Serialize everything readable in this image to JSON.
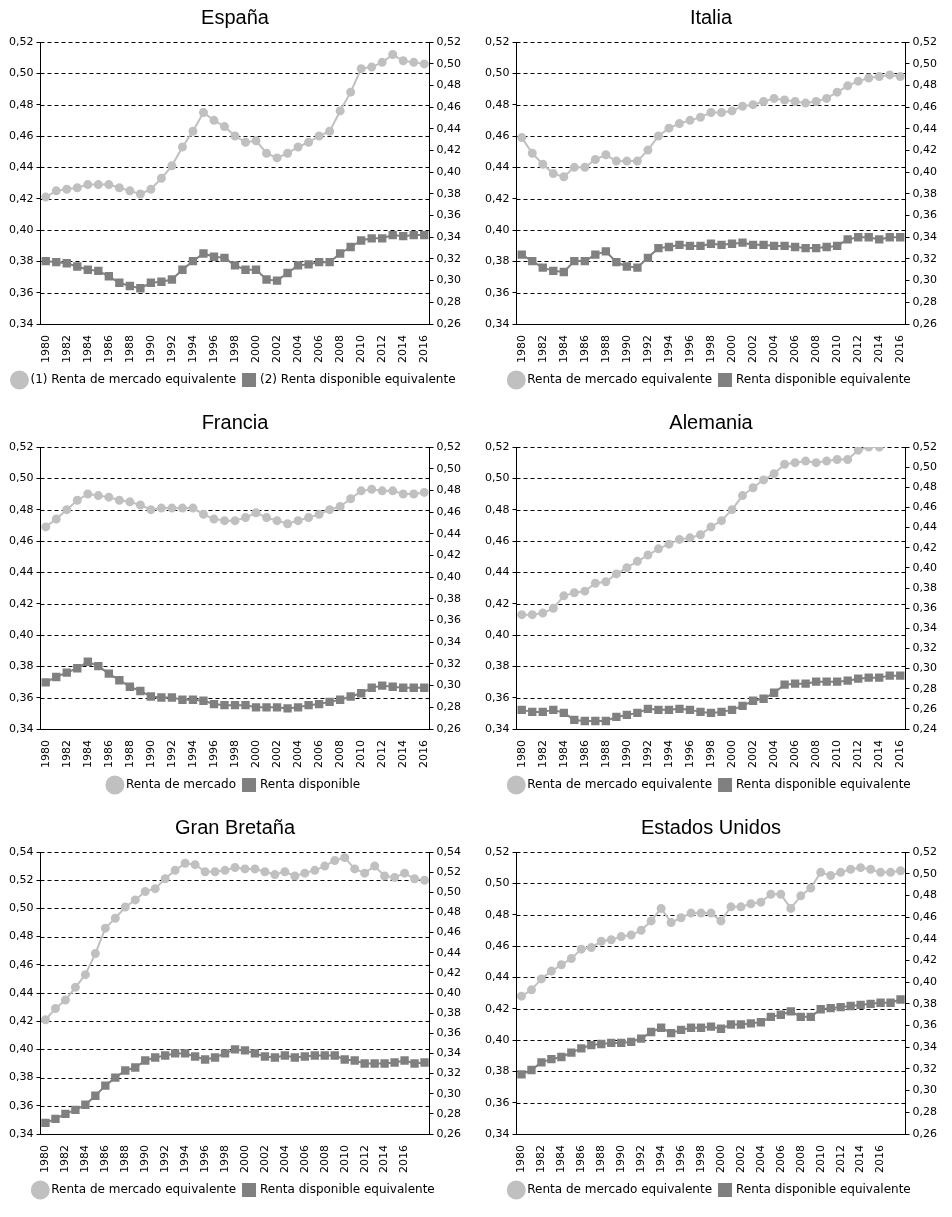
{
  "chart_data": [
    {
      "type": "line",
      "title": "España",
      "categories": [
        "1980",
        null,
        "1982",
        null,
        "1984",
        null,
        "1986",
        null,
        "1988",
        null,
        "1990",
        null,
        "1992",
        null,
        "1994",
        null,
        "1996",
        null,
        "1998",
        null,
        "2000",
        null,
        "2002",
        null,
        "2004",
        null,
        "2006",
        null,
        "2008",
        null,
        "2010",
        null,
        "2012",
        null,
        "2014",
        null,
        "2016"
      ],
      "series": [
        {
          "name": "(1) Renta de mercado equivalente",
          "color": "#c0c0c0",
          "marker": "circle",
          "values": [
            0.421,
            0.425,
            0.426,
            0.427,
            0.429,
            0.429,
            0.429,
            0.427,
            0.425,
            0.423,
            0.426,
            0.433,
            0.441,
            0.453,
            0.463,
            0.475,
            0.47,
            0.466,
            0.46,
            0.456,
            0.457,
            0.449,
            0.446,
            0.449,
            0.453,
            0.456,
            0.46,
            0.463,
            0.476,
            0.488,
            0.503,
            0.504,
            0.507,
            0.512,
            0.508,
            0.507,
            0.506
          ]
        },
        {
          "name": "(2) Renta disponible equivalente",
          "color": "#808080",
          "marker": "square",
          "axis": "y2",
          "values": [
            0.318,
            0.317,
            0.316,
            0.313,
            0.31,
            0.309,
            0.304,
            0.298,
            0.295,
            0.293,
            0.298,
            0.299,
            0.301,
            0.31,
            0.318,
            0.325,
            0.322,
            0.321,
            0.314,
            0.31,
            0.31,
            0.301,
            0.3,
            0.307,
            0.314,
            0.315,
            0.317,
            0.317,
            0.325,
            0.331,
            0.337,
            0.339,
            0.339,
            0.342,
            0.341,
            0.342,
            0.342
          ]
        }
      ],
      "ylim": [
        0.34,
        0.52
      ],
      "yticks": [
        {
          "value": 0.34,
          "label": "0,34"
        },
        {
          "value": 0.36,
          "label": "0,36"
        },
        {
          "value": 0.38,
          "label": "0,38"
        },
        {
          "value": 0.4,
          "label": "0,40"
        },
        {
          "value": 0.42,
          "label": "0,42"
        },
        {
          "value": 0.44,
          "label": "0,44"
        },
        {
          "value": 0.46,
          "label": "0,46"
        },
        {
          "value": 0.48,
          "label": "0,48"
        },
        {
          "value": 0.5,
          "label": "0,50"
        },
        {
          "value": 0.52,
          "label": "0,52"
        }
      ],
      "y2lim": [
        0.26,
        0.52
      ],
      "y2ticks": [
        {
          "value": 0.26,
          "label": "0,26"
        },
        {
          "value": 0.28,
          "label": "0,28"
        },
        {
          "value": 0.3,
          "label": "0,30"
        },
        {
          "value": 0.32,
          "label": "0,32"
        },
        {
          "value": 0.34,
          "label": "0,34"
        },
        {
          "value": 0.36,
          "label": "0,36"
        },
        {
          "value": 0.38,
          "label": "0,38"
        },
        {
          "value": 0.4,
          "label": "0,40"
        },
        {
          "value": 0.42,
          "label": "0,42"
        },
        {
          "value": 0.44,
          "label": "0,44"
        },
        {
          "value": 0.46,
          "label": "0,46"
        },
        {
          "value": 0.48,
          "label": "0,48"
        },
        {
          "value": 0.5,
          "label": "0,50"
        },
        {
          "value": 0.52,
          "label": "0,52"
        }
      ],
      "grid": "y",
      "legend": "bottom",
      "line_style": "solid"
    },
    {
      "type": "line",
      "title": "Italia",
      "categories": [
        "1980",
        null,
        "1982",
        null,
        "1984",
        null,
        "1986",
        null,
        "1988",
        null,
        "1990",
        null,
        "1992",
        null,
        "1994",
        null,
        "1996",
        null,
        "1998",
        null,
        "2000",
        null,
        "2002",
        null,
        "2004",
        null,
        "2006",
        null,
        "2008",
        null,
        "2010",
        null,
        "2012",
        null,
        "2014",
        null,
        "2016"
      ],
      "series": [
        {
          "name": "Renta de mercado equivalente",
          "color": "#c0c0c0",
          "marker": "circle",
          "values": [
            0.459,
            0.449,
            0.442,
            0.436,
            0.434,
            0.44,
            0.44,
            0.445,
            0.448,
            0.444,
            0.444,
            0.444,
            0.451,
            0.46,
            0.465,
            0.468,
            0.47,
            0.472,
            0.475,
            0.475,
            0.476,
            0.479,
            0.48,
            0.482,
            0.484,
            0.483,
            0.482,
            0.481,
            0.482,
            0.484,
            0.488,
            0.492,
            0.495,
            0.497,
            0.498,
            0.499,
            0.498
          ]
        },
        {
          "name": "Renta disponible equivalente",
          "color": "#808080",
          "marker": "square",
          "axis": "y2",
          "values": [
            0.324,
            0.318,
            0.312,
            0.309,
            0.308,
            0.318,
            0.318,
            0.324,
            0.327,
            0.317,
            0.313,
            0.312,
            0.321,
            0.33,
            0.331,
            0.333,
            0.332,
            0.332,
            0.334,
            0.333,
            0.334,
            0.335,
            0.333,
            0.333,
            0.332,
            0.332,
            0.331,
            0.33,
            0.33,
            0.331,
            0.332,
            0.338,
            0.34,
            0.34,
            0.338,
            0.34,
            0.34
          ]
        }
      ],
      "ylim": [
        0.34,
        0.52
      ],
      "yticks": [
        {
          "value": 0.34,
          "label": "0,34"
        },
        {
          "value": 0.36,
          "label": "0,36"
        },
        {
          "value": 0.38,
          "label": "0,38"
        },
        {
          "value": 0.4,
          "label": "0,40"
        },
        {
          "value": 0.42,
          "label": "0,42"
        },
        {
          "value": 0.44,
          "label": "0,44"
        },
        {
          "value": 0.46,
          "label": "0,46"
        },
        {
          "value": 0.48,
          "label": "0,48"
        },
        {
          "value": 0.5,
          "label": "0,50"
        },
        {
          "value": 0.52,
          "label": "0,52"
        }
      ],
      "y2lim": [
        0.26,
        0.52
      ],
      "y2ticks": [
        {
          "value": 0.26,
          "label": "0,26"
        },
        {
          "value": 0.28,
          "label": "0,28"
        },
        {
          "value": 0.3,
          "label": "0,30"
        },
        {
          "value": 0.32,
          "label": "0,32"
        },
        {
          "value": 0.34,
          "label": "0,34"
        },
        {
          "value": 0.36,
          "label": "0,36"
        },
        {
          "value": 0.38,
          "label": "0,38"
        },
        {
          "value": 0.4,
          "label": "0,40"
        },
        {
          "value": 0.42,
          "label": "0,42"
        },
        {
          "value": 0.44,
          "label": "0,44"
        },
        {
          "value": 0.46,
          "label": "0,46"
        },
        {
          "value": 0.48,
          "label": "0,48"
        },
        {
          "value": 0.5,
          "label": "0,50"
        },
        {
          "value": 0.52,
          "label": "0,52"
        }
      ],
      "grid": "y",
      "legend": "bottom",
      "line_style": "solid"
    },
    {
      "type": "line",
      "title": "Francia",
      "categories": [
        "1980",
        null,
        "1982",
        null,
        "1984",
        null,
        "1986",
        null,
        "1988",
        null,
        "1990",
        null,
        "1992",
        null,
        "1994",
        null,
        "1996",
        null,
        "1998",
        null,
        "2000",
        null,
        "2002",
        null,
        "2004",
        null,
        "2006",
        null,
        "2008",
        null,
        "2010",
        null,
        "2012",
        null,
        "2014",
        null,
        "2016"
      ],
      "series": [
        {
          "name": "Renta de mercado",
          "color": "#c0c0c0",
          "marker": "circle",
          "values": [
            0.469,
            0.474,
            0.48,
            0.486,
            0.49,
            0.489,
            0.488,
            0.486,
            0.485,
            0.483,
            0.48,
            0.481,
            0.481,
            0.481,
            0.481,
            0.477,
            0.474,
            0.473,
            0.473,
            0.475,
            0.478,
            0.475,
            0.473,
            0.471,
            0.473,
            0.475,
            0.477,
            0.48,
            0.482,
            0.487,
            0.492,
            0.493,
            0.492,
            0.492,
            0.49,
            0.49,
            0.491
          ]
        },
        {
          "name": "Renta disponible",
          "color": "#808080",
          "marker": "square",
          "axis": "y2",
          "values": [
            0.303,
            0.308,
            0.312,
            0.316,
            0.322,
            0.318,
            0.311,
            0.305,
            0.299,
            0.295,
            0.29,
            0.289,
            0.289,
            0.287,
            0.287,
            0.286,
            0.283,
            0.282,
            0.282,
            0.282,
            0.28,
            0.28,
            0.28,
            0.279,
            0.28,
            0.282,
            0.283,
            0.285,
            0.287,
            0.29,
            0.293,
            0.298,
            0.3,
            0.299,
            0.298,
            0.298,
            0.298
          ]
        }
      ],
      "ylim": [
        0.34,
        0.52
      ],
      "yticks": [
        {
          "value": 0.34,
          "label": "0,34"
        },
        {
          "value": 0.36,
          "label": "0,36"
        },
        {
          "value": 0.38,
          "label": "0,38"
        },
        {
          "value": 0.4,
          "label": "0,40"
        },
        {
          "value": 0.42,
          "label": "0,42"
        },
        {
          "value": 0.44,
          "label": "0,44"
        },
        {
          "value": 0.46,
          "label": "0,46"
        },
        {
          "value": 0.48,
          "label": "0,48"
        },
        {
          "value": 0.5,
          "label": "0,50"
        },
        {
          "value": 0.52,
          "label": "0,52"
        }
      ],
      "y2lim": [
        0.26,
        0.52
      ],
      "y2ticks": [
        {
          "value": 0.26,
          "label": "0,26"
        },
        {
          "value": 0.28,
          "label": "0,28"
        },
        {
          "value": 0.3,
          "label": "0,30"
        },
        {
          "value": 0.32,
          "label": "0,32"
        },
        {
          "value": 0.34,
          "label": "0,34"
        },
        {
          "value": 0.36,
          "label": "0,36"
        },
        {
          "value": 0.38,
          "label": "0,38"
        },
        {
          "value": 0.4,
          "label": "0,40"
        },
        {
          "value": 0.42,
          "label": "0,42"
        },
        {
          "value": 0.44,
          "label": "0,44"
        },
        {
          "value": 0.46,
          "label": "0,46"
        },
        {
          "value": 0.48,
          "label": "0,48"
        },
        {
          "value": 0.5,
          "label": "0,50"
        },
        {
          "value": 0.52,
          "label": "0,52"
        }
      ],
      "grid": "y",
      "legend": "bottom",
      "line_style": "solid"
    },
    {
      "type": "line",
      "title": "Alemania",
      "categories": [
        "1980",
        null,
        "1982",
        null,
        "1984",
        null,
        "1986",
        null,
        "1988",
        null,
        "1990",
        null,
        "1992",
        null,
        "1994",
        null,
        "1996",
        null,
        "1998",
        null,
        "2000",
        null,
        "2002",
        null,
        "2004",
        null,
        "2006",
        null,
        "2008",
        null,
        "2010",
        null,
        "2012",
        null,
        "2014",
        null,
        "2016"
      ],
      "series": [
        {
          "name": "Renta de mercado equivalente",
          "color": "#c0c0c0",
          "marker": "circle",
          "values": [
            0.413,
            0.413,
            0.414,
            0.417,
            0.425,
            0.427,
            0.428,
            0.433,
            0.434,
            0.439,
            0.443,
            0.447,
            0.451,
            0.455,
            0.458,
            0.461,
            0.462,
            0.464,
            0.469,
            0.473,
            0.48,
            0.489,
            0.494,
            0.499,
            0.503,
            0.509,
            0.51,
            0.511,
            0.51,
            0.511,
            0.512,
            0.512,
            0.518,
            0.52,
            0.52,
            null,
            null
          ]
        },
        {
          "name": "Renta disponible equivalente",
          "color": "#808080",
          "marker": "square",
          "axis": "y2",
          "values": [
            0.259,
            0.257,
            0.257,
            0.259,
            0.256,
            0.249,
            0.248,
            0.248,
            0.248,
            0.252,
            0.254,
            0.256,
            0.26,
            0.259,
            0.259,
            0.26,
            0.259,
            0.257,
            0.256,
            0.257,
            0.259,
            0.263,
            0.268,
            0.27,
            0.276,
            0.284,
            0.285,
            0.285,
            0.287,
            0.287,
            0.287,
            0.288,
            0.29,
            0.291,
            0.291,
            0.293,
            0.293
          ]
        }
      ],
      "ylim": [
        0.34,
        0.52
      ],
      "yticks": [
        {
          "value": 0.34,
          "label": "0,34"
        },
        {
          "value": 0.36,
          "label": "0,36"
        },
        {
          "value": 0.38,
          "label": "0,38"
        },
        {
          "value": 0.4,
          "label": "0,40"
        },
        {
          "value": 0.42,
          "label": "0,42"
        },
        {
          "value": 0.44,
          "label": "0,44"
        },
        {
          "value": 0.46,
          "label": "0,46"
        },
        {
          "value": 0.48,
          "label": "0,48"
        },
        {
          "value": 0.5,
          "label": "0,50"
        },
        {
          "value": 0.52,
          "label": "0,52"
        }
      ],
      "y2lim": [
        0.24,
        0.52
      ],
      "y2ticks": [
        {
          "value": 0.24,
          "label": "0,24"
        },
        {
          "value": 0.26,
          "label": "0,26"
        },
        {
          "value": 0.28,
          "label": "0,28"
        },
        {
          "value": 0.3,
          "label": "0,30"
        },
        {
          "value": 0.32,
          "label": "0,32"
        },
        {
          "value": 0.34,
          "label": "0,34"
        },
        {
          "value": 0.36,
          "label": "0,36"
        },
        {
          "value": 0.38,
          "label": "0,38"
        },
        {
          "value": 0.4,
          "label": "0,40"
        },
        {
          "value": 0.42,
          "label": "0,42"
        },
        {
          "value": 0.44,
          "label": "0,44"
        },
        {
          "value": 0.46,
          "label": "0,46"
        },
        {
          "value": 0.48,
          "label": "0,48"
        },
        {
          "value": 0.5,
          "label": "0,50"
        },
        {
          "value": 0.52,
          "label": "0,52"
        }
      ],
      "grid": "y",
      "legend": "bottom",
      "line_style": "solid"
    },
    {
      "type": "line",
      "title": "Gran Bretaña",
      "categories": [
        "1980",
        null,
        "1982",
        null,
        "1984",
        null,
        "1986",
        null,
        "1988",
        null,
        "1990",
        null,
        "1992",
        null,
        "1994",
        null,
        "1996",
        null,
        "1998",
        null,
        "2000",
        null,
        "2002",
        null,
        "2004",
        null,
        "2006",
        null,
        "2008",
        null,
        "2010",
        null,
        "2012",
        null,
        "2014",
        null,
        "2016",
        null,
        null
      ],
      "series": [
        {
          "name": "Renta de mercado equivalente",
          "color": "#c0c0c0",
          "marker": "circle",
          "values": [
            0.421,
            0.429,
            0.435,
            0.444,
            0.453,
            0.468,
            0.486,
            0.493,
            0.501,
            0.506,
            0.512,
            0.514,
            0.521,
            0.527,
            0.532,
            0.531,
            0.526,
            0.526,
            0.527,
            0.529,
            0.528,
            0.528,
            0.526,
            0.524,
            0.526,
            0.523,
            0.525,
            0.527,
            0.53,
            0.534,
            0.536,
            0.528,
            0.525,
            0.53,
            0.523,
            0.522,
            0.525,
            0.521,
            0.52
          ]
        },
        {
          "name": "Renta disponible equivalente",
          "color": "#808080",
          "marker": "square",
          "axis": "y2",
          "values": [
            0.271,
            0.275,
            0.28,
            0.284,
            0.289,
            0.298,
            0.308,
            0.316,
            0.323,
            0.326,
            0.333,
            0.336,
            0.338,
            0.34,
            0.34,
            0.337,
            0.334,
            0.336,
            0.34,
            0.344,
            0.343,
            0.34,
            0.337,
            0.336,
            0.338,
            0.336,
            0.337,
            0.338,
            0.338,
            0.338,
            0.334,
            0.333,
            0.33,
            0.33,
            0.33,
            0.331,
            0.333,
            0.33,
            0.331
          ]
        }
      ],
      "ylim": [
        0.34,
        0.54
      ],
      "yticks": [
        {
          "value": 0.34,
          "label": "0,34"
        },
        {
          "value": 0.36,
          "label": "0,36"
        },
        {
          "value": 0.38,
          "label": "0,38"
        },
        {
          "value": 0.4,
          "label": "0,40"
        },
        {
          "value": 0.42,
          "label": "0,42"
        },
        {
          "value": 0.44,
          "label": "0,44"
        },
        {
          "value": 0.46,
          "label": "0,46"
        },
        {
          "value": 0.48,
          "label": "0,48"
        },
        {
          "value": 0.5,
          "label": "0,50"
        },
        {
          "value": 0.52,
          "label": "0,52"
        },
        {
          "value": 0.54,
          "label": "0,54"
        }
      ],
      "y2lim": [
        0.26,
        0.54
      ],
      "y2ticks": [
        {
          "value": 0.26,
          "label": "0,26"
        },
        {
          "value": 0.28,
          "label": "0,28"
        },
        {
          "value": 0.3,
          "label": "0,30"
        },
        {
          "value": 0.32,
          "label": "0,32"
        },
        {
          "value": 0.34,
          "label": "0,34"
        },
        {
          "value": 0.36,
          "label": "0,36"
        },
        {
          "value": 0.38,
          "label": "0,38"
        },
        {
          "value": 0.4,
          "label": "0,40"
        },
        {
          "value": 0.42,
          "label": "0,42"
        },
        {
          "value": 0.44,
          "label": "0,44"
        },
        {
          "value": 0.46,
          "label": "0,46"
        },
        {
          "value": 0.48,
          "label": "0,48"
        },
        {
          "value": 0.5,
          "label": "0,50"
        },
        {
          "value": 0.52,
          "label": "0,52"
        },
        {
          "value": 0.54,
          "label": "0,54"
        }
      ],
      "grid": "y",
      "legend": "bottom",
      "line_style": "solid"
    },
    {
      "type": "line",
      "title": "Estados Unidos",
      "categories": [
        "1980",
        null,
        "1982",
        null,
        "1984",
        null,
        "1986",
        null,
        "1988",
        null,
        "1990",
        null,
        "1992",
        null,
        "1994",
        null,
        "1996",
        null,
        "1998",
        null,
        "2000",
        null,
        "2002",
        null,
        "2004",
        null,
        "2006",
        null,
        "2008",
        null,
        "2010",
        null,
        "2012",
        null,
        "2014",
        null,
        "2016",
        null,
        null
      ],
      "series": [
        {
          "name": "Renta de mercado equivalente",
          "color": "#c0c0c0",
          "marker": "circle",
          "values": [
            0.428,
            0.432,
            0.439,
            0.444,
            0.448,
            0.452,
            0.458,
            0.459,
            0.463,
            0.464,
            0.466,
            0.467,
            0.47,
            0.476,
            0.484,
            0.475,
            0.478,
            0.481,
            0.481,
            0.481,
            0.476,
            0.485,
            0.485,
            0.487,
            0.488,
            0.493,
            0.493,
            0.484,
            0.492,
            0.497,
            0.507,
            0.505,
            0.507,
            0.509,
            0.51,
            0.509,
            0.507,
            0.507,
            0.508
          ]
        },
        {
          "name": "Renta disponible equivalente",
          "color": "#808080",
          "marker": "square",
          "axis": "y2",
          "values": [
            0.315,
            0.319,
            0.326,
            0.329,
            0.331,
            0.335,
            0.339,
            0.342,
            0.343,
            0.344,
            0.344,
            0.345,
            0.348,
            0.354,
            0.358,
            0.353,
            0.356,
            0.358,
            0.358,
            0.359,
            0.357,
            0.361,
            0.361,
            0.362,
            0.363,
            0.368,
            0.37,
            0.373,
            0.368,
            0.368,
            0.375,
            0.376,
            0.377,
            0.378,
            0.379,
            0.38,
            0.381,
            0.381,
            0.384
          ]
        }
      ],
      "ylim": [
        0.34,
        0.52
      ],
      "yticks": [
        {
          "value": 0.34,
          "label": "0,34"
        },
        {
          "value": 0.36,
          "label": "0,36"
        },
        {
          "value": 0.38,
          "label": "0,38"
        },
        {
          "value": 0.4,
          "label": "0,40"
        },
        {
          "value": 0.42,
          "label": "0,42"
        },
        {
          "value": 0.44,
          "label": "0,44"
        },
        {
          "value": 0.46,
          "label": "0,46"
        },
        {
          "value": 0.48,
          "label": "0,48"
        },
        {
          "value": 0.5,
          "label": "0,50"
        },
        {
          "value": 0.52,
          "label": "0,52"
        }
      ],
      "y2lim": [
        0.26,
        0.52
      ],
      "y2ticks": [
        {
          "value": 0.26,
          "label": "0,26"
        },
        {
          "value": 0.28,
          "label": "0,28"
        },
        {
          "value": 0.3,
          "label": "0,30"
        },
        {
          "value": 0.32,
          "label": "0,32"
        },
        {
          "value": 0.34,
          "label": "0,34"
        },
        {
          "value": 0.36,
          "label": "0,36"
        },
        {
          "value": 0.38,
          "label": "0,38"
        },
        {
          "value": 0.4,
          "label": "0,40"
        },
        {
          "value": 0.42,
          "label": "0,42"
        },
        {
          "value": 0.44,
          "label": "0,44"
        },
        {
          "value": 0.46,
          "label": "0,46"
        },
        {
          "value": 0.48,
          "label": "0,48"
        },
        {
          "value": 0.5,
          "label": "0,50"
        },
        {
          "value": 0.52,
          "label": "0,52"
        }
      ],
      "grid": "y",
      "legend": "bottom",
      "line_style": "solid"
    }
  ]
}
